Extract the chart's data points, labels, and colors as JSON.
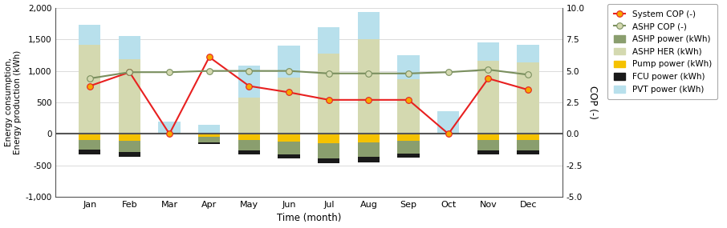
{
  "months": [
    "Jan",
    "Feb",
    "Mar",
    "Apr",
    "May",
    "Jun",
    "Jul",
    "Aug",
    "Sep",
    "Oct",
    "Nov",
    "Dec"
  ],
  "ashp_her": [
    1420,
    1180,
    0,
    0,
    580,
    900,
    1280,
    1510,
    870,
    0,
    1160,
    1140
  ],
  "pvt_power": [
    310,
    370,
    200,
    140,
    500,
    500,
    420,
    420,
    380,
    360,
    290,
    270
  ],
  "ashp_power": [
    -150,
    -180,
    0,
    -80,
    -160,
    -200,
    -240,
    -230,
    -200,
    0,
    -160,
    -160
  ],
  "pump_power": [
    -100,
    -110,
    0,
    -50,
    -100,
    -120,
    -150,
    -140,
    -110,
    0,
    -100,
    -100
  ],
  "fcu_power": [
    -70,
    -70,
    0,
    -30,
    -70,
    -75,
    -75,
    -80,
    -70,
    0,
    -70,
    -70
  ],
  "system_cop": [
    3.8,
    4.9,
    0.0,
    6.1,
    3.8,
    3.3,
    2.7,
    2.7,
    2.7,
    0.0,
    4.4,
    3.5
  ],
  "ashp_cop": [
    4.4,
    4.9,
    4.9,
    5.0,
    5.0,
    5.0,
    4.8,
    4.8,
    4.8,
    4.9,
    5.1,
    4.7
  ],
  "ylim_left": [
    -1000,
    2000
  ],
  "ylim_right": [
    -5.0,
    10.0
  ],
  "yticks_left": [
    -1000,
    -500,
    0,
    500,
    1000,
    1500,
    2000
  ],
  "yticks_right": [
    -5.0,
    -2.5,
    0.0,
    2.5,
    5.0,
    7.5,
    10.0
  ],
  "color_ashp_her": "#d4d9b0",
  "color_pvt_power": "#b8e0ec",
  "color_ashp_power": "#8a9e6e",
  "color_pump_power": "#f5c200",
  "color_fcu_power": "#1a1a1a",
  "color_system_cop": "#e82020",
  "color_ashp_cop": "#7a8f5e",
  "ylabel_left": "Energy consumption,\nEnergy production (kWh)",
  "ylabel_right": "COP (-)",
  "xlabel": "Time (month)"
}
